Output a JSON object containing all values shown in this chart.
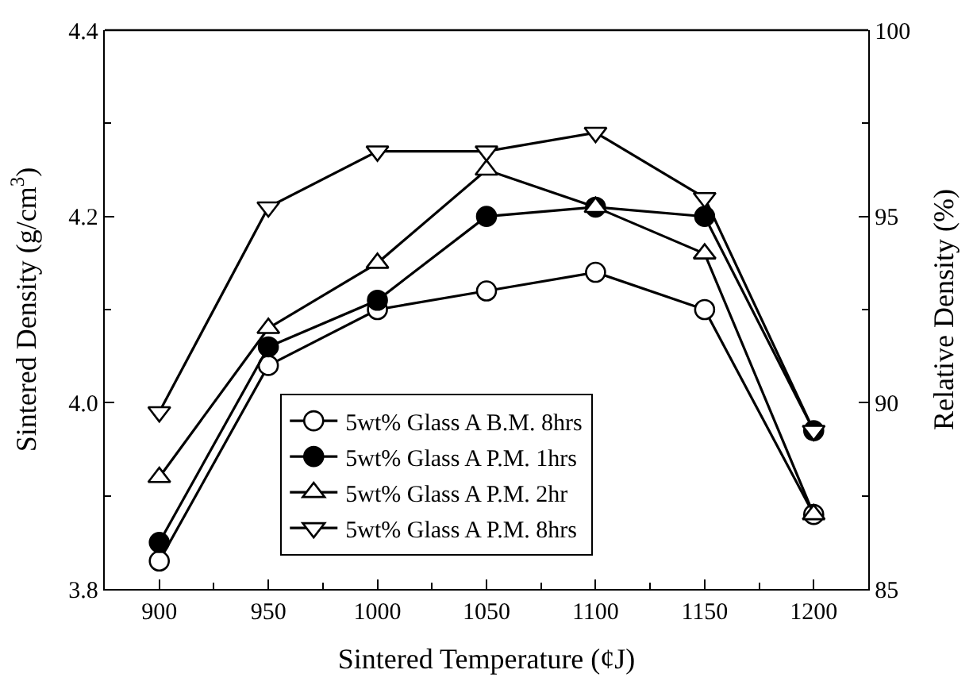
{
  "chart_data": {
    "type": "line",
    "xlabel": "Sintered Temperature (¢J)",
    "ylabel": "Sintered Density (g/cm$^{3}$)",
    "y2label": "Relative Density (%)",
    "x": [
      900,
      950,
      1000,
      1050,
      1100,
      1150,
      1200
    ],
    "series": [
      {
        "name": "5wt% Glass A B.M. 8hrs",
        "color": "#000000",
        "marker": "circle-open",
        "values": [
          3.83,
          4.04,
          4.1,
          4.12,
          4.14,
          4.1,
          3.88
        ]
      },
      {
        "name": "5wt% Glass A P.M. 1hrs",
        "color": "#000000",
        "marker": "circle",
        "values": [
          3.85,
          4.06,
          4.11,
          4.2,
          4.21,
          4.2,
          3.97
        ]
      },
      {
        "name": "5wt% Glass A P.M. 2hr",
        "color": "#000000",
        "marker": "triangle-open",
        "values": [
          3.92,
          4.08,
          4.15,
          4.25,
          4.21,
          4.16,
          3.88
        ]
      },
      {
        "name": "5wt% Glass A P.M. 8hrs",
        "color": "#000000",
        "marker": "triangle-down-open",
        "values": [
          3.99,
          4.21,
          4.27,
          4.27,
          4.29,
          4.22,
          3.97
        ]
      }
    ],
    "xlim": [
      875,
      1225
    ],
    "xticks": [
      900,
      950,
      1000,
      1050,
      1100,
      1150,
      1200
    ],
    "ylim": [
      3.8,
      4.4
    ],
    "yticks": [
      {
        "value": 3.8,
        "label": "3.8"
      },
      {
        "value": 4.0,
        "label": "4.0"
      },
      {
        "value": 4.2,
        "label": "4.2"
      },
      {
        "value": 4.4,
        "label": "4.4"
      }
    ],
    "y2lim": [
      85,
      100
    ],
    "y2ticks": [
      85,
      90,
      95,
      100
    ],
    "legend": "bottom",
    "line_style": "solid"
  }
}
